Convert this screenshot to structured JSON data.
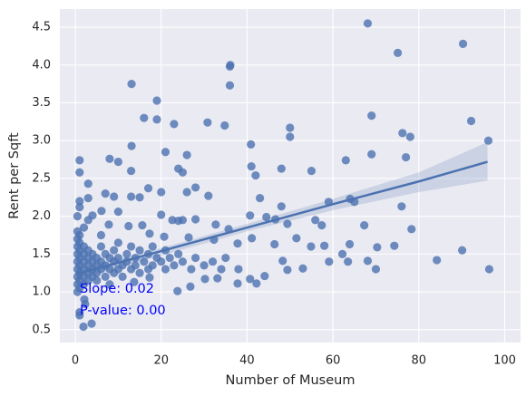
{
  "chart_data": {
    "type": "scatter",
    "x_label": "Number of Museum",
    "y_label": "Rent per Sqft",
    "color": "#4c72b0",
    "x": [
      68.1,
      90.3,
      75.1,
      36.1,
      36.0,
      36.0,
      13.1,
      19.0,
      16.0,
      19.0,
      23.0,
      30.8,
      34.8,
      69.0,
      92.2,
      50.0,
      50.0,
      76.2,
      78.0,
      96.2,
      13.1,
      40.9,
      1.0,
      8.0,
      10.0,
      21.0,
      26.0,
      69.0,
      63.0,
      77.0,
      1.0,
      13.0,
      24.0,
      25.0,
      41.0,
      42.0,
      48.0,
      55.0,
      3.0,
      17.0,
      20.0,
      26.0,
      28.0,
      31.0,
      7.0,
      9.0,
      13.0,
      15.0,
      3.0,
      64.0,
      65.0,
      59.0,
      76.0,
      48.0,
      43.0,
      1.0,
      6.1,
      10.0,
      4.0,
      20.0,
      22.6,
      24.0,
      25.0,
      28.0,
      32.7,
      40.7,
      44.5,
      46.6,
      49.4,
      55.9,
      57.4,
      67.3,
      78.3,
      7.8,
      12.4,
      15.6,
      17.3,
      35.7,
      20.7,
      26.4,
      32.3,
      37.8,
      41.1,
      46.4,
      51.5,
      54.9,
      58.0,
      63.9,
      70.3,
      74.3,
      62.2,
      63.5,
      68.1,
      70.0,
      84.2,
      90.1,
      96.4,
      59.1,
      48.3,
      49.4,
      53.0,
      44.1,
      40.7,
      37.8,
      42.2,
      33.1,
      30.2,
      26.8,
      23.8,
      17.3,
      13.7,
      2.1,
      1.0,
      1.0,
      1.9,
      3.8,
      2.3,
      0.5,
      0.5,
      0.5,
      0.5,
      0.5,
      0.5,
      0.5,
      1,
      1,
      1,
      1,
      1,
      1,
      1,
      1,
      2,
      2,
      2,
      2,
      2,
      2,
      3,
      3,
      3,
      3,
      3,
      4,
      4,
      4,
      4,
      5,
      5,
      5,
      5,
      6,
      6,
      6,
      7,
      7,
      7,
      8,
      8,
      8,
      9,
      9,
      9,
      10,
      10,
      10,
      11,
      11,
      12,
      12,
      13,
      13,
      14,
      14,
      15,
      15,
      16,
      17,
      17,
      18,
      18,
      19,
      20,
      21,
      21,
      22,
      23,
      24,
      25,
      27,
      28,
      30,
      32,
      34,
      35,
      38,
      0.5,
      0.5,
      0.5,
      2,
      1,
      3,
      6
    ],
    "y": [
      4.55,
      4.28,
      4.16,
      4.0,
      3.98,
      3.73,
      3.75,
      3.53,
      3.3,
      3.28,
      3.22,
      3.24,
      3.2,
      3.33,
      3.26,
      3.17,
      3.05,
      3.1,
      3.05,
      3.0,
      2.93,
      2.95,
      2.74,
      2.76,
      2.72,
      2.85,
      2.81,
      2.82,
      2.74,
      2.78,
      2.58,
      2.6,
      2.63,
      2.58,
      2.66,
      2.54,
      2.63,
      2.6,
      2.43,
      2.37,
      2.32,
      2.32,
      2.38,
      2.27,
      2.3,
      2.26,
      2.26,
      2.25,
      2.24,
      2.23,
      2.19,
      2.19,
      2.13,
      2.13,
      2.24,
      2.12,
      2.07,
      2.06,
      2.01,
      2.02,
      1.95,
      1.94,
      1.95,
      1.96,
      1.89,
      2.01,
      1.99,
      1.96,
      1.9,
      1.95,
      1.88,
      1.88,
      1.83,
      1.89,
      1.87,
      1.88,
      1.77,
      1.83,
      1.73,
      1.72,
      1.69,
      1.64,
      1.71,
      1.63,
      1.71,
      1.6,
      1.61,
      1.63,
      1.59,
      1.61,
      1.5,
      1.4,
      1.41,
      1.3,
      1.42,
      1.55,
      1.3,
      1.4,
      1.41,
      1.29,
      1.31,
      1.21,
      1.17,
      1.11,
      1.11,
      1.18,
      1.17,
      1.07,
      1.01,
      1.19,
      1.13,
      0.9,
      0.73,
      0.69,
      0.54,
      0.58,
      0.84,
      1.1,
      1.2,
      1.3,
      1.4,
      1.5,
      1.6,
      1.0,
      1.15,
      1.25,
      1.35,
      1.45,
      1.55,
      1.65,
      1.75,
      1.05,
      1.2,
      1.3,
      1.4,
      1.5,
      1.1,
      1.6,
      1.25,
      1.35,
      1.45,
      1.15,
      1.55,
      1.2,
      1.3,
      1.4,
      1.5,
      1.25,
      1.35,
      1.45,
      1.15,
      1.3,
      1.4,
      1.6,
      1.2,
      1.35,
      1.5,
      1.3,
      1.45,
      1.1,
      1.25,
      1.4,
      1.55,
      1.3,
      1.45,
      1.65,
      1.2,
      1.35,
      1.4,
      1.5,
      1.3,
      1.6,
      1.35,
      1.45,
      1.25,
      1.55,
      1.4,
      1.3,
      1.5,
      1.35,
      1.6,
      1.45,
      1.4,
      1.3,
      1.55,
      1.45,
      1.35,
      1.5,
      1.4,
      1.3,
      1.45,
      1.35,
      1.4,
      1.3,
      1.45,
      1.3,
      1.7,
      2.0,
      1.8,
      1.85,
      2.2,
      1.95,
      1.75
    ],
    "fit": {
      "x": [
        0.5,
        20,
        40,
        60,
        80,
        96
      ],
      "y": [
        1.24,
        1.54,
        1.85,
        2.16,
        2.46,
        2.72
      ],
      "lower": [
        1.17,
        1.48,
        1.8,
        2.08,
        2.32,
        2.47
      ],
      "upper": [
        1.3,
        1.58,
        1.9,
        2.23,
        2.58,
        2.98
      ]
    },
    "annotations": [
      "Slope: 0.02",
      "P-value: 0.00"
    ],
    "annotation_color": "#0000ff",
    "xlim": [
      -3.6,
      103.7
    ],
    "ylim": [
      0.33,
      4.74
    ],
    "xticks": [
      0,
      20,
      40,
      60,
      80,
      100
    ],
    "yticks": [
      0.5,
      {
        "value": 1,
        "label": "1.0"
      },
      1.5,
      {
        "value": 2,
        "label": "2.0"
      },
      2.5,
      {
        "value": 3,
        "label": "3.0"
      },
      3.5,
      {
        "value": 4,
        "label": "4.0"
      },
      4.5
    ],
    "grid": true
  }
}
